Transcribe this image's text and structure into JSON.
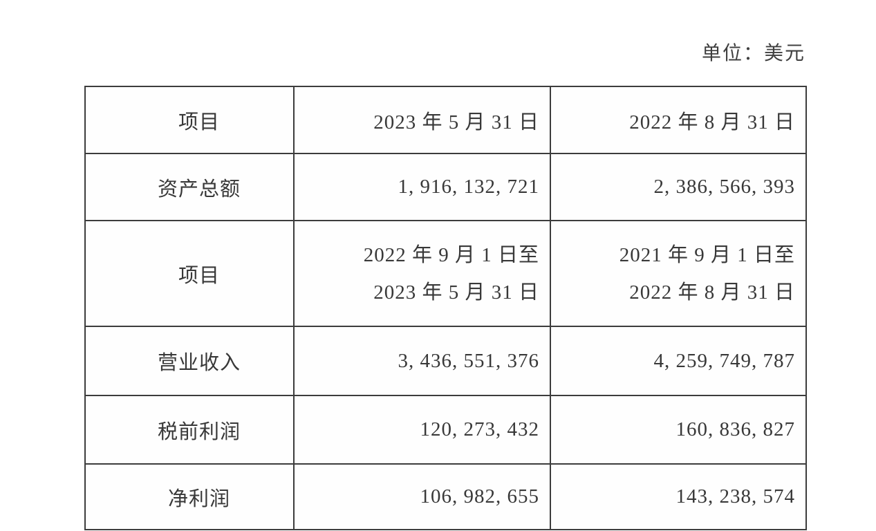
{
  "unit_label": "单位：美元",
  "table": {
    "section1": {
      "header": {
        "item": "项目",
        "col2": "2023 年 5 月 31 日",
        "col3": "2022 年 8 月 31 日"
      },
      "rows": [
        {
          "label": "资产总额",
          "v1": "1, 916, 132, 721",
          "v2": "2, 386, 566, 393"
        }
      ]
    },
    "section2": {
      "header": {
        "item": "项目",
        "col2_line1": "2022 年 9 月 1 日至",
        "col2_line2": "2023 年 5 月 31 日",
        "col3_line1": "2021 年 9 月 1 日至",
        "col3_line2": "2022 年 8 月 31 日"
      },
      "rows": [
        {
          "label": "营业收入",
          "v1": "3, 436, 551, 376",
          "v2": "4, 259, 749, 787"
        },
        {
          "label": "税前利润",
          "v1": "120, 273, 432",
          "v2": "160, 836, 827"
        },
        {
          "label": "净利润",
          "v1": "106, 982, 655",
          "v2": "143, 238, 574"
        }
      ]
    }
  },
  "colors": {
    "text": "#3a3a3a",
    "border": "#3c3c3c",
    "background": "#ffffff"
  }
}
